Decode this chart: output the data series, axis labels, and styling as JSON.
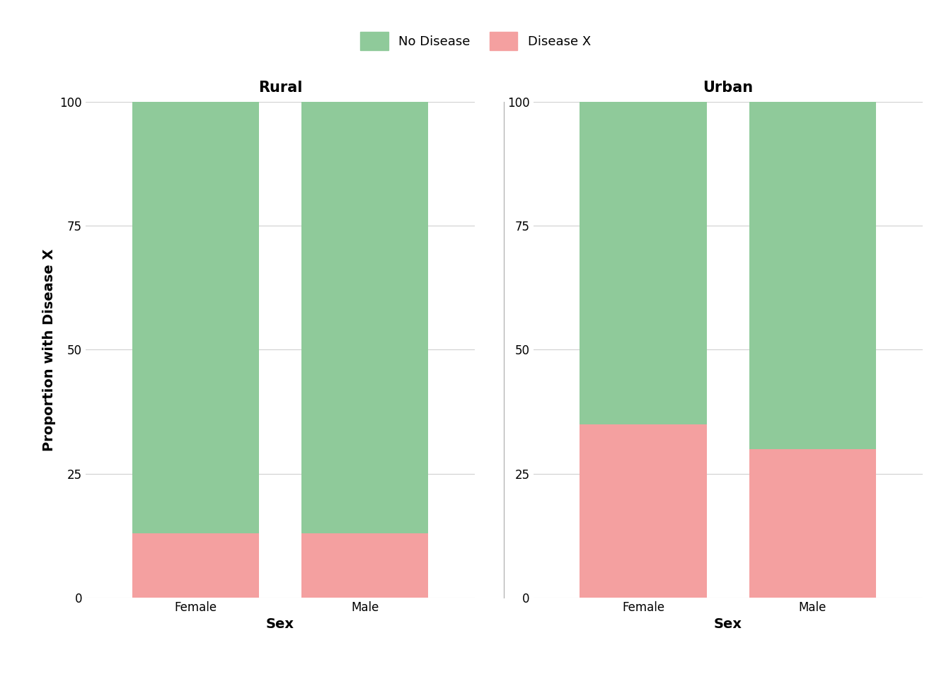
{
  "locations": [
    "Rural",
    "Urban"
  ],
  "sexes": [
    "Female",
    "Male"
  ],
  "disease_x": {
    "Rural": {
      "Female": 13,
      "Male": 13
    },
    "Urban": {
      "Female": 35,
      "Male": 30
    }
  },
  "no_disease": {
    "Rural": {
      "Female": 87,
      "Male": 87
    },
    "Urban": {
      "Female": 65,
      "Male": 70
    }
  },
  "color_no_disease": "#8FCA9A",
  "color_disease_x": "#F4A0A0",
  "ylabel": "Proportion with Disease X",
  "xlabel": "Sex",
  "ylim": [
    0,
    100
  ],
  "yticks": [
    0,
    25,
    50,
    75,
    100
  ],
  "legend_labels": [
    "No Disease",
    "Disease X"
  ],
  "background_color": "#ffffff",
  "grid_color": "#d0d0d0",
  "bar_width": 0.75,
  "title_fontsize": 15,
  "label_fontsize": 14,
  "tick_fontsize": 12,
  "legend_fontsize": 13
}
